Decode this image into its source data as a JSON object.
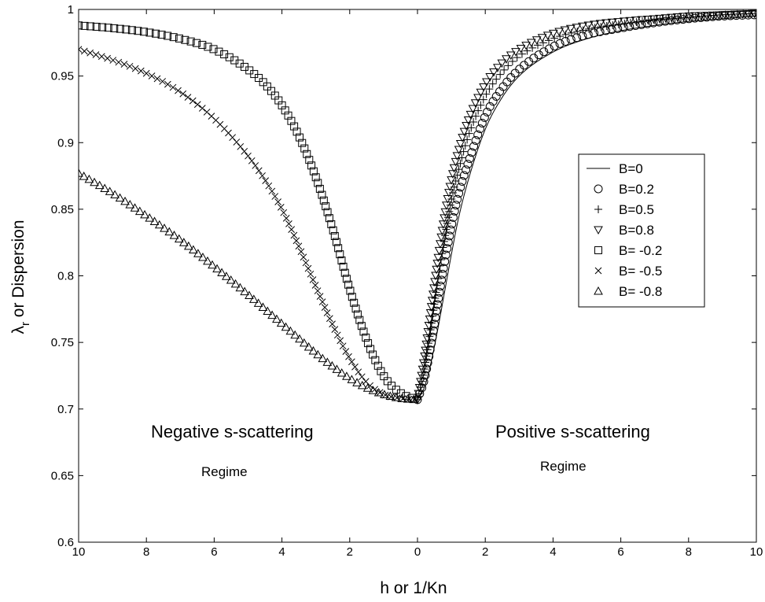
{
  "chart_data": {
    "type": "scatter",
    "title": "",
    "xlabel": "h or 1/Kn",
    "ylabel_main": "λ",
    "ylabel_sub": "r",
    "ylabel_rest": " or Dispersion",
    "xlim": [
      -10,
      10
    ],
    "ylim": [
      0.6,
      1.0
    ],
    "x_ticks": [
      "10",
      "8",
      "6",
      "4",
      "2",
      "0",
      "2",
      "4",
      "6",
      "8",
      "10"
    ],
    "y_ticks": [
      "0.6",
      "0.65",
      "0.7",
      "0.75",
      "0.8",
      "0.85",
      "0.9",
      "0.95",
      "1"
    ],
    "grid": false,
    "legend_position": "right",
    "annotations": {
      "negative_title": "Negative s-scattering",
      "negative_sub": "Regime",
      "positive_title": "Positive s-scattering",
      "positive_sub": "Regime"
    },
    "series": [
      {
        "name": "B=0",
        "marker": "line",
        "x": [
          0,
          0.2,
          0.4,
          0.6,
          0.8,
          1.0,
          1.2,
          1.5,
          2.0,
          2.5,
          3.0,
          4.0,
          5.0,
          6.0,
          7.0,
          8.0,
          9.0,
          10.0
        ],
        "y": [
          0.707,
          0.716,
          0.735,
          0.76,
          0.788,
          0.816,
          0.842,
          0.872,
          0.91,
          0.934,
          0.95,
          0.968,
          0.978,
          0.984,
          0.988,
          0.991,
          0.993,
          0.995
        ]
      },
      {
        "name": "B=0.2",
        "marker": "circle",
        "x": [
          0,
          0.2,
          0.4,
          0.6,
          0.8,
          1.0,
          1.2,
          1.5,
          2.0,
          2.5,
          3.0,
          4.0,
          5.0,
          6.0,
          7.0,
          8.0,
          9.0,
          10.0
        ],
        "y": [
          0.707,
          0.722,
          0.748,
          0.78,
          0.81,
          0.837,
          0.86,
          0.885,
          0.92,
          0.941,
          0.955,
          0.972,
          0.981,
          0.986,
          0.99,
          0.993,
          0.995,
          0.996
        ]
      },
      {
        "name": "B=0.5",
        "marker": "plus",
        "x": [
          0,
          0.2,
          0.4,
          0.6,
          0.8,
          1.0,
          1.2,
          1.5,
          2.0,
          2.5,
          3.0,
          4.0,
          5.0,
          6.0,
          7.0,
          8.0,
          9.0,
          10.0
        ],
        "y": [
          0.707,
          0.73,
          0.762,
          0.797,
          0.828,
          0.857,
          0.878,
          0.905,
          0.935,
          0.953,
          0.965,
          0.978,
          0.985,
          0.989,
          0.992,
          0.994,
          0.996,
          0.997
        ]
      },
      {
        "name": "B=0.8",
        "marker": "triangle-down",
        "x": [
          0,
          0.2,
          0.4,
          0.6,
          0.8,
          1.0,
          1.2,
          1.5,
          2.0,
          2.5,
          3.0,
          4.0,
          5.0,
          6.0,
          7.0,
          8.0,
          9.0,
          10.0
        ],
        "y": [
          0.707,
          0.738,
          0.775,
          0.812,
          0.845,
          0.872,
          0.893,
          0.917,
          0.944,
          0.96,
          0.97,
          0.982,
          0.988,
          0.991,
          0.993,
          0.995,
          0.996,
          0.997
        ]
      },
      {
        "name": "B= -0.2",
        "marker": "square",
        "x": [
          -10,
          -9,
          -8,
          -7,
          -6,
          -5,
          -4.5,
          -4,
          -3.5,
          -3,
          -2.5,
          -2,
          -1.5,
          -1,
          -0.5,
          0
        ],
        "y": [
          0.988,
          0.986,
          0.983,
          0.978,
          0.97,
          0.955,
          0.944,
          0.928,
          0.905,
          0.874,
          0.835,
          0.79,
          0.752,
          0.725,
          0.712,
          0.707
        ]
      },
      {
        "name": "B= -0.5",
        "marker": "x",
        "x": [
          -10,
          -9,
          -8,
          -7,
          -6,
          -5,
          -4.5,
          -4,
          -3.5,
          -3,
          -2.5,
          -2,
          -1.5,
          -1,
          -0.5,
          0
        ],
        "y": [
          0.97,
          0.962,
          0.952,
          0.938,
          0.918,
          0.89,
          0.872,
          0.85,
          0.822,
          0.792,
          0.763,
          0.738,
          0.72,
          0.711,
          0.708,
          0.707
        ]
      },
      {
        "name": "B= -0.8",
        "marker": "triangle-up",
        "x": [
          -10,
          -9,
          -8,
          -7,
          -6,
          -5,
          -4,
          -3.5,
          -3,
          -2.5,
          -2,
          -1.5,
          -1,
          -0.5,
          0
        ],
        "y": [
          0.877,
          0.862,
          0.845,
          0.827,
          0.807,
          0.786,
          0.764,
          0.753,
          0.742,
          0.732,
          0.723,
          0.716,
          0.711,
          0.708,
          0.707
        ]
      }
    ]
  }
}
